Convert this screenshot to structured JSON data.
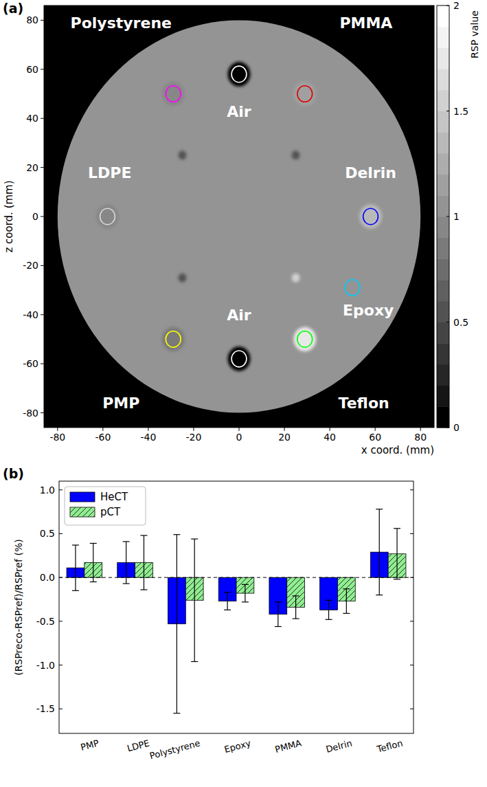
{
  "chart_data": [
    {
      "type": "image",
      "title": "(a)",
      "x_label": "x coord. (mm)",
      "y_label": "z coord. (mm)",
      "xlim": [
        -86,
        86
      ],
      "ylim": [
        -86,
        86
      ],
      "xticks": [
        -80,
        -60,
        -40,
        -20,
        0,
        20,
        40,
        60,
        80
      ],
      "yticks": [
        -80,
        -60,
        -40,
        -20,
        0,
        20,
        40,
        60,
        80
      ],
      "colorbar": {
        "label": "RSP value",
        "range": [
          0,
          2
        ],
        "ticks": [
          0,
          0.5,
          1,
          1.5,
          2
        ]
      },
      "phantom": {
        "x": 0,
        "z": 0,
        "radius": 80,
        "rsp": 1.04
      },
      "inserts": [
        {
          "name": "Air",
          "x": 0,
          "z": 58,
          "radius": 5,
          "rsp": 0,
          "color": "#ffffff"
        },
        {
          "name": "Polystyrene",
          "x": -29,
          "z": 50,
          "radius": 5,
          "rsp": 0.95,
          "color": "#ff00ff"
        },
        {
          "name": "PMMA",
          "x": 29,
          "z": 50,
          "radius": 5,
          "rsp": 1.12,
          "color": "#e00000"
        },
        {
          "name": "LDPE",
          "x": -58,
          "z": 0,
          "radius": 5,
          "rsp": 0.95,
          "color": "#d8d8d8"
        },
        {
          "name": "Delrin",
          "x": 58,
          "z": 0,
          "radius": 5,
          "rsp": 1.35,
          "color": "#0000ff"
        },
        {
          "name": "Epoxy",
          "x": 50,
          "z": -29,
          "radius": 5,
          "rsp": 1.04,
          "color": "#00c8ff"
        },
        {
          "name": "Teflon",
          "x": 29,
          "z": -50,
          "radius": 5,
          "rsp": 1.79,
          "color": "#00ff00"
        },
        {
          "name": "Air",
          "x": 0,
          "z": -58,
          "radius": 5,
          "rsp": 0,
          "color": "#ffffff"
        },
        {
          "name": "PMP",
          "x": -29,
          "z": -50,
          "radius": 5,
          "rsp": 0.88,
          "color": "#ffff00"
        }
      ],
      "fiducials": [
        {
          "x": -25,
          "z": 25,
          "rsp": 0.5
        },
        {
          "x": 25,
          "z": 25,
          "rsp": 0.5
        },
        {
          "x": -25,
          "z": -25,
          "rsp": 0.5
        },
        {
          "x": 25,
          "z": -25,
          "rsp": 1.5
        }
      ]
    },
    {
      "type": "bar",
      "title": "(b)",
      "y_label": "(RSPreco-RSPref)/RSPref (%)",
      "categories": [
        "PMP",
        "LDPE",
        "Polystyrene",
        "Epoxy",
        "PMMA",
        "Delrin",
        "Teflon"
      ],
      "series": [
        {
          "name": "HeCT",
          "color": "#0000ff",
          "values": [
            0.11,
            0.17,
            -0.53,
            -0.27,
            -0.42,
            -0.37,
            0.29
          ],
          "errors": [
            0.26,
            0.24,
            1.02,
            0.1,
            0.14,
            0.11,
            0.49
          ]
        },
        {
          "name": "pCT",
          "color": "#90ee90",
          "values": [
            0.17,
            0.17,
            -0.26,
            -0.18,
            -0.34,
            -0.27,
            0.27
          ],
          "errors": [
            0.22,
            0.31,
            0.7,
            0.1,
            0.13,
            0.14,
            0.29
          ]
        }
      ],
      "ylim": [
        -1.78,
        1.1
      ],
      "yticks": [
        -1.5,
        {
          "value": -1,
          "label": "-1.0"
        },
        -0.5,
        {
          "value": 0,
          "label": "0.0"
        },
        0.5,
        {
          "value": 1,
          "label": "1.0"
        }
      ],
      "reference_line": 0,
      "legend": "upper left",
      "grid": false
    }
  ]
}
